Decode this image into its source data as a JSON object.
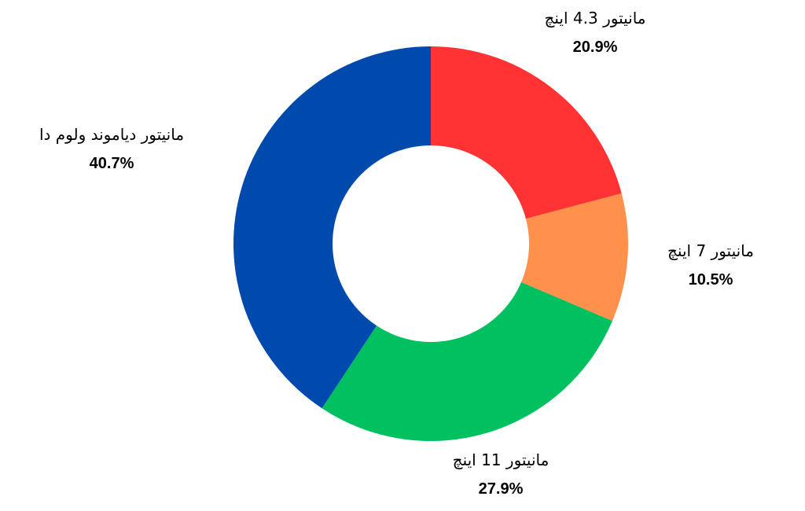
{
  "chart_data": {
    "type": "pie",
    "variant": "donut",
    "start": "top",
    "direction": "clockwise",
    "slices": [
      {
        "label": "مانیتور 4.3 اینچ",
        "value": 20.9,
        "value_label": "20.9%",
        "color": "#ff3333"
      },
      {
        "label": "مانیتور 7 اینچ",
        "value": 10.5,
        "value_label": "10.5%",
        "color": "#ff914d"
      },
      {
        "label": "مانیتور 11 اینچ",
        "value": 27.9,
        "value_label": "27.9%",
        "color": "#00c060"
      },
      {
        "label": "مانیتور دیاموند ولوم دا",
        "value": 40.7,
        "value_label": "40.7%",
        "color": "#004aad"
      }
    ]
  }
}
